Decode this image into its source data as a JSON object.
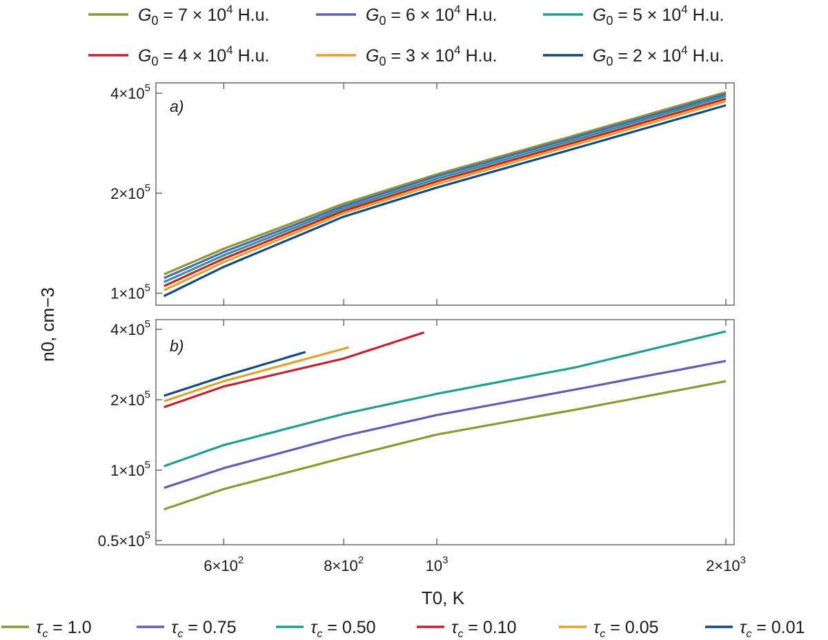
{
  "colors": {
    "olive": "#8a9a2e",
    "indigo": "#5861b5",
    "teal": "#1e9e9a",
    "red": "#c8202e",
    "orange": "#e3a12b",
    "navy": "#124a80"
  },
  "chart_data": [
    {
      "id": "a",
      "type": "line",
      "panel_label": "a)",
      "xscale": "log",
      "yscale": "log",
      "xlim": [
        510,
        2040
      ],
      "ylim": [
        92000,
        430000
      ],
      "ylabel": "n0, cm−3",
      "ytick_values": [
        100000,
        200000,
        400000
      ],
      "ytick_labels": [
        {
          "mantissa": "1×10",
          "exp": "5"
        },
        {
          "mantissa": "2×10",
          "exp": "5"
        },
        {
          "mantissa": "4×10",
          "exp": "5"
        }
      ],
      "legend_position": "top",
      "legend_entries": [
        {
          "lhs": "G",
          "sub": "0",
          "rhs": " = 7 × 10",
          "exp": "4",
          "unit": " H.u.",
          "color": "#8a9a2e"
        },
        {
          "lhs": "G",
          "sub": "0",
          "rhs": " = 6 × 10",
          "exp": "4",
          "unit": " H.u.",
          "color": "#5861b5"
        },
        {
          "lhs": "G",
          "sub": "0",
          "rhs": " = 5 × 10",
          "exp": "4",
          "unit": " H.u.",
          "color": "#1e9e9a"
        },
        {
          "lhs": "G",
          "sub": "0",
          "rhs": " = 4 × 10",
          "exp": "4",
          "unit": " H.u.",
          "color": "#c8202e"
        },
        {
          "lhs": "G",
          "sub": "0",
          "rhs": " = 3 × 10",
          "exp": "4",
          "unit": " H.u.",
          "color": "#e3a12b"
        },
        {
          "lhs": "G",
          "sub": "0",
          "rhs": " = 2 × 10",
          "exp": "4",
          "unit": " H.u.",
          "color": "#124a80"
        }
      ],
      "series": [
        {
          "name": "G0 = 7 × 10^4 H.u.",
          "color": "#8a9a2e",
          "x": [
            520,
            600,
            800,
            1000,
            1400,
            2000
          ],
          "y": [
            114000,
            136000,
            186000,
            228000,
            300000,
            403000
          ]
        },
        {
          "name": "G0 = 6 × 10^4 H.u.",
          "color": "#5861b5",
          "x": [
            520,
            600,
            800,
            1000,
            1400,
            2000
          ],
          "y": [
            111000,
            133000,
            183000,
            225000,
            296000,
            398000
          ]
        },
        {
          "name": "G0 = 5 × 10^4 H.u.",
          "color": "#1e9e9a",
          "x": [
            520,
            600,
            800,
            1000,
            1400,
            2000
          ],
          "y": [
            108000,
            130000,
            180000,
            221000,
            291000,
            392000
          ]
        },
        {
          "name": "G0 = 4 × 10^4 H.u.",
          "color": "#c8202e",
          "x": [
            520,
            600,
            800,
            1000,
            1400,
            2000
          ],
          "y": [
            105000,
            127000,
            177000,
            217000,
            286000,
            385000
          ]
        },
        {
          "name": "G0 = 3 × 10^4 H.u.",
          "color": "#e3a12b",
          "x": [
            520,
            600,
            800,
            1000,
            1400,
            2000
          ],
          "y": [
            102000,
            124000,
            174000,
            213000,
            281000,
            378000
          ]
        },
        {
          "name": "G0 = 2 × 10^4 H.u.",
          "color": "#124a80",
          "x": [
            520,
            600,
            800,
            1000,
            1400,
            2000
          ],
          "y": [
            98000,
            120000,
            170000,
            208000,
            274000,
            368000
          ]
        }
      ]
    },
    {
      "id": "b",
      "type": "line",
      "panel_label": "b)",
      "xscale": "log",
      "yscale": "log",
      "xlim": [
        510,
        2040
      ],
      "ylim": [
        48000,
        440000
      ],
      "xlabel": "T0, K",
      "xtick_values": [
        600,
        800,
        1000,
        2000
      ],
      "xtick_labels": [
        {
          "mantissa": "6×10",
          "exp": "2"
        },
        {
          "mantissa": "8×10",
          "exp": "2"
        },
        {
          "mantissa": "10",
          "exp": "3"
        },
        {
          "mantissa": "2×10",
          "exp": "3"
        }
      ],
      "ytick_values": [
        50000,
        100000,
        200000,
        400000
      ],
      "ytick_labels": [
        {
          "mantissa": "0.5×10",
          "exp": "5"
        },
        {
          "mantissa": "1×10",
          "exp": "5"
        },
        {
          "mantissa": "2×10",
          "exp": "5"
        },
        {
          "mantissa": "4×10",
          "exp": "5"
        }
      ],
      "legend_position": "bottom",
      "legend_entries": [
        {
          "lhs": "τ",
          "sub": "c",
          "rhs": " = 1.0",
          "color": "#8a9a2e"
        },
        {
          "lhs": "τ",
          "sub": "c",
          "rhs": " = 0.75",
          "color": "#5861b5"
        },
        {
          "lhs": "τ",
          "sub": "c",
          "rhs": " = 0.50",
          "color": "#1e9e9a"
        },
        {
          "lhs": "τ",
          "sub": "c",
          "rhs": " = 0.10",
          "color": "#c8202e"
        },
        {
          "lhs": "τ",
          "sub": "c",
          "rhs": " = 0.05",
          "color": "#e3a12b"
        },
        {
          "lhs": "τ",
          "sub": "c",
          "rhs": " = 0.01",
          "color": "#124a80"
        }
      ],
      "series": [
        {
          "name": "τc = 1.0",
          "color": "#8a9a2e",
          "x": [
            520,
            600,
            800,
            1000,
            1400,
            2000
          ],
          "y": [
            68000,
            83000,
            113000,
            142000,
            182000,
            240000
          ]
        },
        {
          "name": "τc = 0.75",
          "color": "#5861b5",
          "x": [
            520,
            600,
            800,
            1000,
            1400,
            2000
          ],
          "y": [
            84000,
            102000,
            140000,
            172000,
            222000,
            293000
          ]
        },
        {
          "name": "τc = 0.50",
          "color": "#1e9e9a",
          "x": [
            520,
            600,
            800,
            1000,
            1400,
            2000
          ],
          "y": [
            104000,
            128000,
            174000,
            212000,
            276000,
            392000
          ]
        },
        {
          "name": "τc = 0.10",
          "color": "#c8202e",
          "x": [
            520,
            600,
            800,
            970
          ],
          "y": [
            186000,
            228000,
            300000,
            388000
          ]
        },
        {
          "name": "τc = 0.05",
          "color": "#e3a12b",
          "x": [
            520,
            600,
            810
          ],
          "y": [
            197000,
            240000,
            335000
          ]
        },
        {
          "name": "τc = 0.01",
          "color": "#124a80",
          "x": [
            520,
            600,
            730
          ],
          "y": [
            208000,
            252000,
            320000
          ]
        }
      ]
    }
  ]
}
